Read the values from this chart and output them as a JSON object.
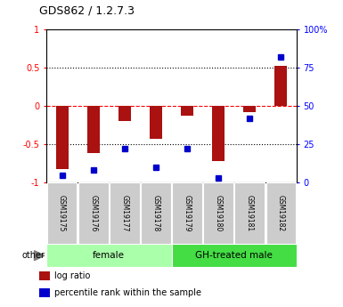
{
  "title": "GDS862 / 1.2.7.3",
  "samples": [
    "GSM19175",
    "GSM19176",
    "GSM19177",
    "GSM19178",
    "GSM19179",
    "GSM19180",
    "GSM19181",
    "GSM19182"
  ],
  "log_ratio": [
    -0.82,
    -0.62,
    -0.2,
    -0.43,
    -0.13,
    -0.72,
    -0.08,
    0.52
  ],
  "percentile_rank": [
    5,
    8,
    22,
    10,
    22,
    3,
    42,
    82
  ],
  "groups": [
    {
      "label": "female",
      "indices": [
        0,
        1,
        2,
        3
      ],
      "color": "#aaffaa"
    },
    {
      "label": "GH-treated male",
      "indices": [
        4,
        5,
        6,
        7
      ],
      "color": "#44dd44"
    }
  ],
  "other_label": "other",
  "bar_color": "#aa1111",
  "dot_color": "#0000cc",
  "ylim_left": [
    -1,
    1
  ],
  "ylim_right": [
    0,
    100
  ],
  "yticks_left": [
    -1,
    -0.5,
    0,
    0.5,
    1
  ],
  "yticks_right": [
    0,
    25,
    50,
    75,
    100
  ],
  "yticklabels_right": [
    "0",
    "25",
    "50",
    "75",
    "100%"
  ],
  "hlines_dotted": [
    -0.5,
    0.5
  ],
  "hline_red_dashed": 0.0,
  "background_color": "#ffffff",
  "sample_box_color": "#cccccc",
  "legend_items": [
    {
      "color": "#aa1111",
      "label": "log ratio"
    },
    {
      "color": "#0000cc",
      "label": "percentile rank within the sample"
    }
  ]
}
